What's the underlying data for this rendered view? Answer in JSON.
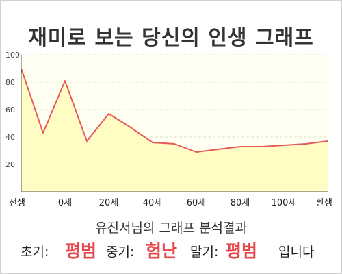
{
  "title": "재미로 보는 당신의 인생 그래프",
  "chart_data": {
    "type": "area",
    "x": [
      0,
      1,
      2,
      3,
      4,
      5,
      6,
      7,
      8,
      9,
      10,
      11,
      12,
      13,
      14
    ],
    "values": [
      90,
      43,
      81,
      37,
      57,
      47,
      36,
      35,
      29,
      31,
      33,
      33,
      34,
      35,
      37
    ],
    "xticks": [
      {
        "x": 0,
        "label": "전생"
      },
      {
        "x": 2,
        "label": "0세"
      },
      {
        "x": 4,
        "label": "20세"
      },
      {
        "x": 6,
        "label": "40세"
      },
      {
        "x": 8,
        "label": "60세"
      },
      {
        "x": 10,
        "label": "80세"
      },
      {
        "x": 12,
        "label": "100세"
      },
      {
        "x": 14,
        "label": "환생"
      }
    ],
    "yticks": [
      20,
      40,
      60,
      80,
      100
    ],
    "ylim": [
      0,
      100
    ],
    "grid": true,
    "colors": {
      "line": "#e8575c",
      "fill": "#fffcc4",
      "background": "#fffff2",
      "grid": "#e2e2d2"
    }
  },
  "result": {
    "subtitle": "유진서님의 그래프 분석결과",
    "early_label": "초기:",
    "early_value": "평범",
    "mid_label": "중기:",
    "mid_value": "험난",
    "late_label": "말기:",
    "late_value": "평범",
    "suffix": "입니다"
  }
}
